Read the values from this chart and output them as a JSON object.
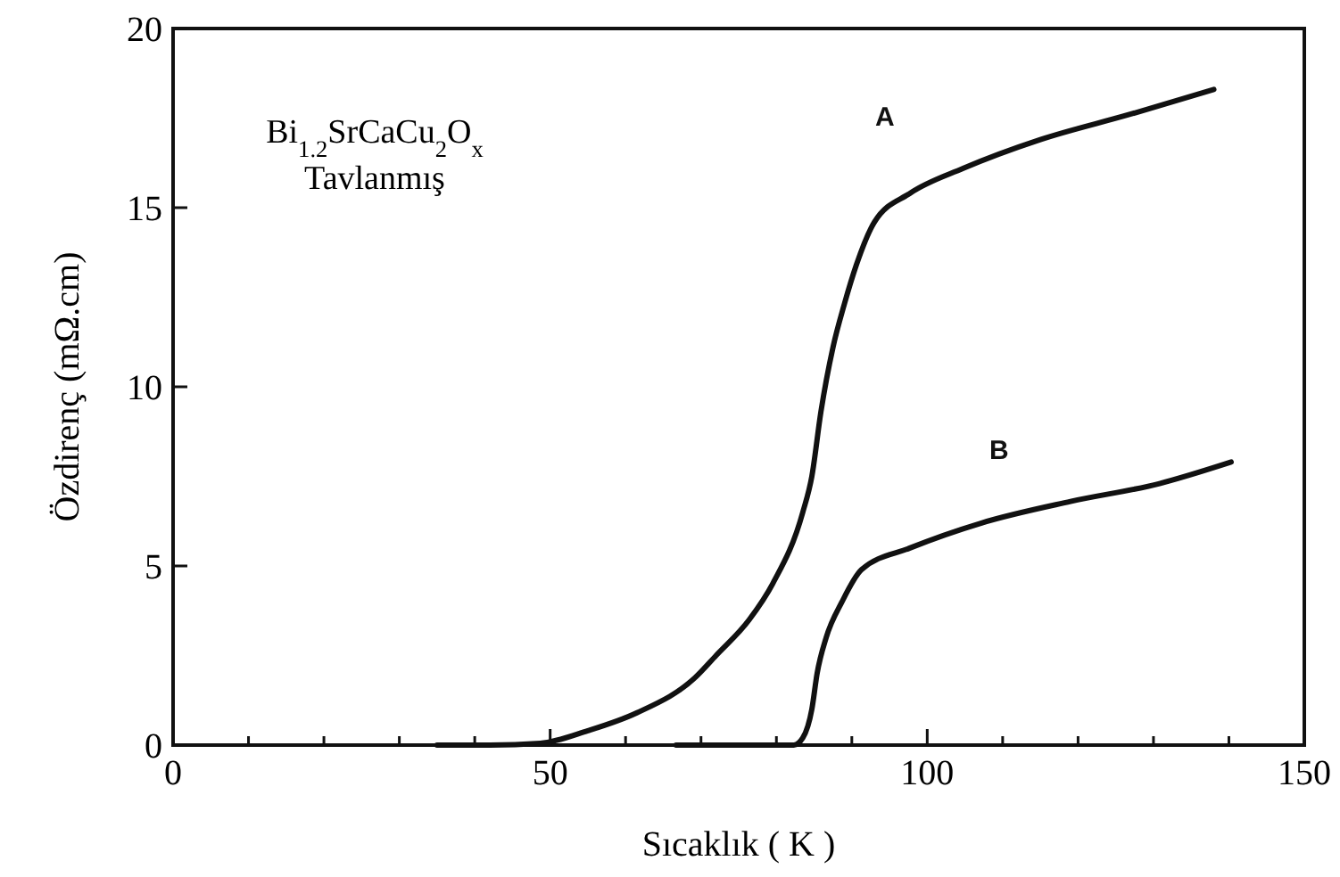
{
  "chart_data": {
    "type": "line",
    "xlabel": "Sıcaklık ( K )",
    "ylabel": "Özdirenç (mΩ.cm)",
    "annotations": [
      "Bi$_{1.2}$SrCaCu$_{2}$O$_{x}$",
      "Tavlanmış"
    ],
    "xlim": [
      0,
      150
    ],
    "xticks": [
      0,
      {
        "value": 10,
        "label": null
      },
      {
        "value": 20,
        "label": null
      },
      {
        "value": 30,
        "label": null
      },
      {
        "value": 40,
        "label": null
      },
      50,
      {
        "value": 60,
        "label": null
      },
      {
        "value": 70,
        "label": null
      },
      {
        "value": 80,
        "label": null
      },
      {
        "value": 90,
        "label": null
      },
      100,
      {
        "value": 110,
        "label": null
      },
      {
        "value": 120,
        "label": null
      },
      {
        "value": 130,
        "label": null
      },
      {
        "value": 140,
        "label": null
      },
      150
    ],
    "ylim": [
      0,
      20
    ],
    "yticks": [
      0,
      5,
      10,
      15,
      20
    ],
    "grid": false,
    "marker": "none",
    "line_style": "solid",
    "series": [
      {
        "name": "A",
        "color": "#111111",
        "x": [
          35,
          42,
          48.7,
          55,
          61.5,
          69.3,
          72,
          76.4,
          79.5,
          83.5,
          84.7,
          85.9,
          87.5,
          89,
          90.6,
          93,
          97.7,
          104.8,
          115,
          126.8,
          138
        ],
        "values": [
          0,
          0,
          0.05,
          0.4,
          0.9,
          1.9,
          2.5,
          3.5,
          4.5,
          6.5,
          7.5,
          9.3,
          11.1,
          12.3,
          13.4,
          14.6,
          15.4,
          16.1,
          16.9,
          17.6,
          18.3
        ]
      },
      {
        "name": "B",
        "color": "#111111",
        "x": [
          66.7,
          75,
          82.3,
          83.5,
          84.7,
          85.4,
          86.6,
          88.7,
          91.3,
          97.7,
          107.2,
          119,
          130.8,
          140.3
        ],
        "values": [
          0,
          0,
          0,
          0.2,
          1,
          2,
          3,
          4,
          4.9,
          5.5,
          6.2,
          6.8,
          7.3,
          7.9
        ]
      }
    ]
  }
}
